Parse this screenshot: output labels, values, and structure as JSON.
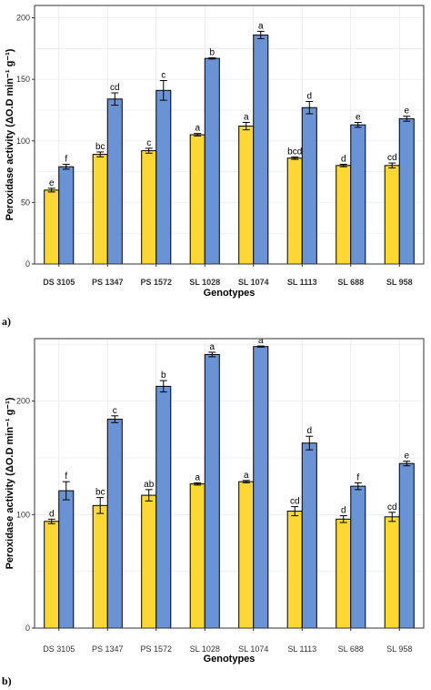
{
  "colors": {
    "series1": "#FDD835",
    "series2": "#6A93D6"
  },
  "chart_data": [
    {
      "type": "bar",
      "panel_label": "a)",
      "xlabel": "Genotypes",
      "ylabel": "Peroxidase activity (ΔO.D min⁻¹ g⁻¹)",
      "ylim": [
        0,
        210
      ],
      "yticks": [
        0,
        50,
        100,
        150,
        200
      ],
      "grid": true,
      "categories": [
        "DS 3105",
        "PS 1347",
        "PS 1572",
        "SL 1028",
        "SL 1074",
        "SL 1113",
        "SL 688",
        "SL 958"
      ],
      "series": [
        {
          "values": [
            60,
            89,
            92,
            105,
            112,
            86,
            80,
            80
          ],
          "errors": [
            1.5,
            2,
            2,
            1,
            3,
            1,
            1,
            2
          ],
          "letters": [
            "e",
            "bc",
            "c",
            "a",
            "a",
            "bcd",
            "d",
            "cd"
          ]
        },
        {
          "values": [
            79,
            134,
            141,
            167,
            186,
            127,
            113,
            118
          ],
          "errors": [
            2,
            5,
            8,
            0.5,
            3,
            5,
            2,
            2
          ],
          "letters": [
            "f",
            "cd",
            "c",
            "b",
            "a",
            "d",
            "e",
            "e"
          ]
        }
      ]
    },
    {
      "type": "bar",
      "panel_label": "b)",
      "xlabel": "Genotypes",
      "ylabel": "Peroxidase activity (ΔO.D min⁻¹ g⁻¹)",
      "ylim": [
        0,
        255
      ],
      "yticks": [
        0,
        100,
        200
      ],
      "grid": true,
      "categories": [
        "DS 3105",
        "PS 1347",
        "PS 1572",
        "SL 1028",
        "SL 1074",
        "SL 1113",
        "SL 688",
        "SL 958"
      ],
      "series": [
        {
          "values": [
            94,
            108,
            117,
            127,
            129,
            103,
            96,
            98
          ],
          "errors": [
            2,
            7,
            5,
            1,
            1,
            4,
            3,
            4
          ],
          "letters": [
            "d",
            "bc",
            "ab",
            "a",
            "a",
            "cd",
            "d",
            "cd"
          ]
        },
        {
          "values": [
            121,
            184,
            213,
            241,
            248,
            163,
            125,
            145
          ],
          "errors": [
            8,
            3,
            5,
            2,
            0.5,
            6,
            3,
            2
          ],
          "letters": [
            "f",
            "c",
            "b",
            "a",
            "a",
            "d",
            "f",
            "e"
          ]
        }
      ]
    }
  ]
}
